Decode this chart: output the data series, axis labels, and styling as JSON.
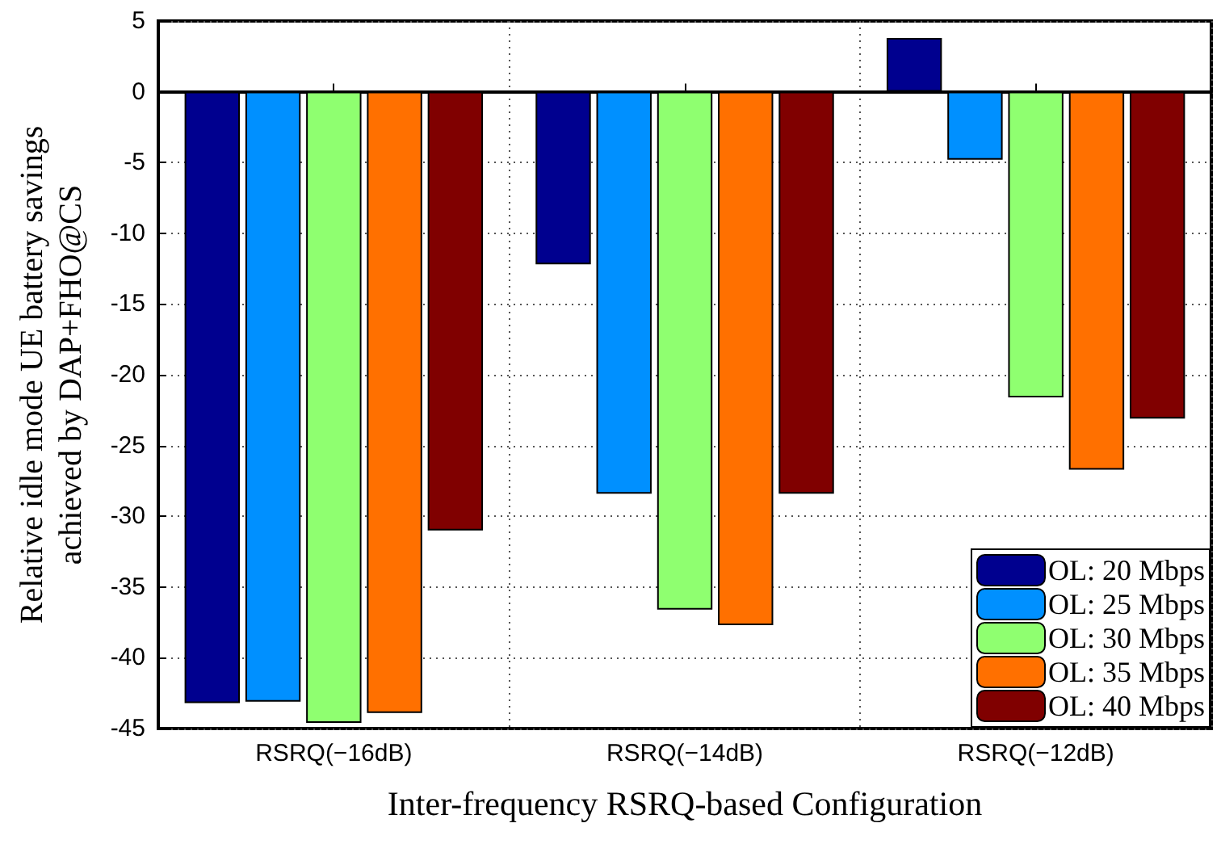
{
  "chart_data": {
    "type": "bar",
    "xlabel": "Inter-frequency RSRQ-based Configuration",
    "ylabel": "Relative idle mode UE battery savings\nachieved by DAP+FHO@CS",
    "categories": [
      "RSRQ(−16dB)",
      "RSRQ(−14dB)",
      "RSRQ(−12dB)"
    ],
    "series": [
      {
        "name": "OL: 20 Mbps",
        "color": "#00008f",
        "values": [
          -43.2,
          -12.2,
          3.8
        ]
      },
      {
        "name": "OL: 25 Mbps",
        "color": "#0090ff",
        "values": [
          -43.1,
          -28.4,
          -4.8
        ]
      },
      {
        "name": "OL: 30 Mbps",
        "color": "#8fff70",
        "values": [
          -44.6,
          -36.6,
          -21.6
        ]
      },
      {
        "name": "OL: 35 Mbps",
        "color": "#ff7000",
        "values": [
          -43.9,
          -37.7,
          -26.7
        ]
      },
      {
        "name": "OL: 40 Mbps",
        "color": "#800000",
        "values": [
          -31.0,
          -28.4,
          -23.1
        ]
      }
    ],
    "ylim": [
      -45,
      5
    ],
    "yticks": [
      -45,
      -40,
      -35,
      -30,
      -25,
      -20,
      -15,
      -10,
      -5,
      0,
      5
    ],
    "grid": true,
    "legend": "bottom right"
  }
}
